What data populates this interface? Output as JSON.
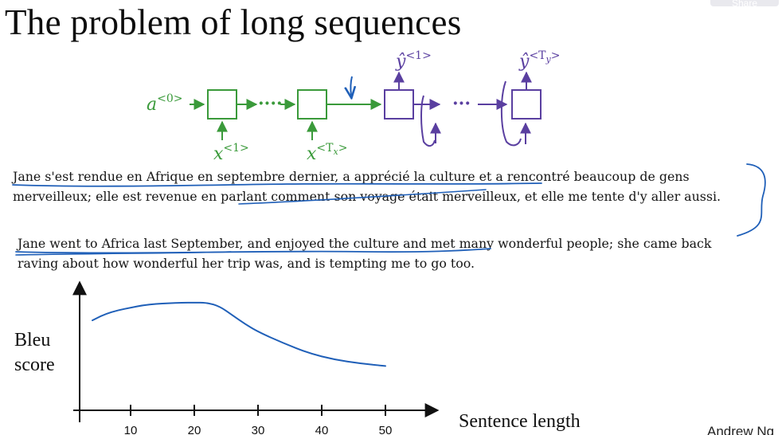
{
  "slide": {
    "title": "The problem of long sequences",
    "share_label": "Share",
    "footer": "Andrew Ng"
  },
  "diagram": {
    "encoder_color": "#3a9a3a",
    "decoder_color": "#5a3fa0",
    "annotation_color": "#1f5fb8",
    "a0_base": "a",
    "a0_sup": "<0>",
    "x1_base": "x",
    "x1_sup": "<1>",
    "xTx_base": "x",
    "xTx_sup": "<T",
    "xTx_subsup": "x",
    "xTx_sup_close": ">",
    "y1_base": "ŷ",
    "y1_sup": "<1>",
    "yTy_base": "ŷ",
    "yTy_sup": "<T",
    "yTy_subsup": "y",
    "yTy_sup_close": ">",
    "ellipsis": "····",
    "dec_ellipsis": "···"
  },
  "texts": {
    "french_sentence": "Jane s'est rendue en Afrique en septembre dernier, a apprécié la culture et a rencontré beaucoup de gens merveilleux; elle est revenue en parlant comment son voyage était merveilleux, et elle me tente d'y aller aussi.",
    "english_sentence": "Jane went to Africa last September, and enjoyed the culture and met many wonderful people; she came back raving about how wonderful her trip was, and is tempting me to go too."
  },
  "chart": {
    "y_label_line1": "Bleu",
    "y_label_line2": "score",
    "x_label": "Sentence length",
    "line_color": "#1f5fb8"
  },
  "chart_data": {
    "type": "line",
    "title": "",
    "xlabel": "Sentence length",
    "ylabel": "Bleu score",
    "x_ticks": [
      10,
      20,
      30,
      40,
      50
    ],
    "xlim": [
      2,
      58
    ],
    "ylim": [
      0,
      1
    ],
    "grid": false,
    "series": [
      {
        "x": [
          4,
          6,
          8,
          10,
          12,
          14,
          16,
          18,
          20,
          22,
          24,
          26,
          28,
          30,
          34,
          38,
          42,
          46,
          50
        ],
        "values": [
          0.71,
          0.76,
          0.79,
          0.81,
          0.83,
          0.84,
          0.845,
          0.85,
          0.85,
          0.85,
          0.82,
          0.75,
          0.68,
          0.62,
          0.53,
          0.45,
          0.4,
          0.37,
          0.35
        ]
      }
    ]
  }
}
